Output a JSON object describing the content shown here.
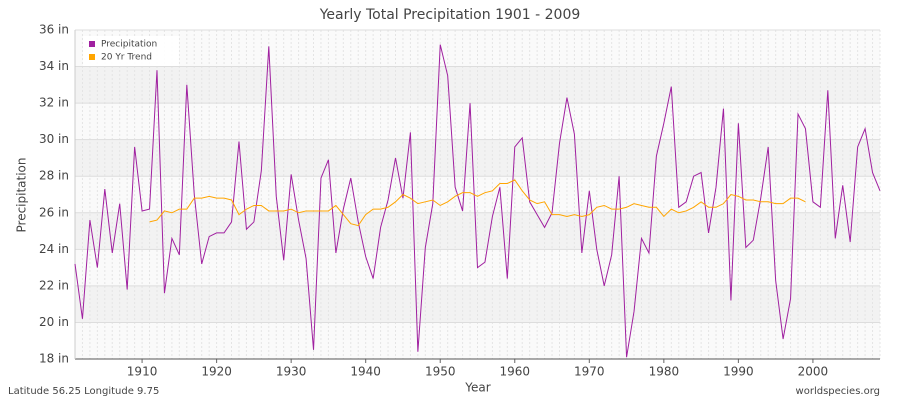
{
  "chart_data": {
    "type": "line",
    "title": "Yearly Total Precipitation 1901 - 2009",
    "x_label": "Year",
    "y_label": "Precipitation",
    "footer_left": "Latitude 56.25 Longitude 9.75",
    "footer_right": "worldspecies.org",
    "x": [
      1901,
      1902,
      1903,
      1904,
      1905,
      1906,
      1907,
      1908,
      1909,
      1910,
      1911,
      1912,
      1913,
      1914,
      1915,
      1916,
      1917,
      1918,
      1919,
      1920,
      1921,
      1922,
      1923,
      1924,
      1925,
      1926,
      1927,
      1928,
      1929,
      1930,
      1931,
      1932,
      1933,
      1934,
      1935,
      1936,
      1937,
      1938,
      1939,
      1940,
      1941,
      1942,
      1943,
      1944,
      1945,
      1946,
      1947,
      1948,
      1949,
      1950,
      1951,
      1952,
      1953,
      1954,
      1955,
      1956,
      1957,
      1958,
      1959,
      1960,
      1961,
      1962,
      1963,
      1964,
      1965,
      1966,
      1967,
      1968,
      1969,
      1970,
      1971,
      1972,
      1973,
      1974,
      1975,
      1976,
      1977,
      1978,
      1979,
      1980,
      1981,
      1982,
      1983,
      1984,
      1985,
      1986,
      1987,
      1988,
      1989,
      1990,
      1991,
      1992,
      1993,
      1994,
      1995,
      1996,
      1997,
      1998,
      1999,
      2000,
      2001,
      2002,
      2003,
      2004,
      2005,
      2006,
      2007,
      2008,
      2009
    ],
    "series": [
      {
        "name": "Precipitation",
        "color": "#a020a0",
        "values": [
          23.2,
          20.2,
          25.6,
          23.0,
          27.3,
          23.8,
          26.5,
          21.8,
          29.6,
          26.1,
          26.2,
          33.8,
          21.6,
          24.6,
          23.7,
          33.0,
          27.0,
          23.2,
          24.7,
          24.9,
          24.9,
          25.5,
          29.9,
          25.1,
          25.5,
          28.3,
          35.1,
          26.9,
          23.4,
          28.1,
          25.6,
          23.5,
          18.5,
          27.9,
          28.9,
          23.8,
          26.2,
          27.9,
          25.5,
          23.6,
          22.4,
          25.2,
          26.7,
          29.0,
          26.8,
          30.4,
          18.4,
          24.1,
          26.5,
          35.2,
          33.5,
          27.4,
          26.1,
          32.0,
          23.0,
          23.3,
          25.8,
          27.4,
          22.4,
          29.6,
          30.1,
          26.6,
          25.9,
          25.2,
          26.0,
          29.8,
          32.3,
          30.3,
          23.8,
          27.2,
          24.0,
          22.0,
          23.7,
          28.0,
          18.1,
          20.6,
          24.6,
          23.8,
          29.1,
          30.9,
          32.9,
          26.3,
          26.6,
          28.0,
          28.2,
          24.9,
          27.4,
          31.7,
          21.2,
          30.9,
          24.1,
          24.5,
          26.8,
          29.6,
          22.3,
          19.1,
          21.3,
          31.4,
          30.6,
          26.6,
          26.3,
          32.7,
          24.6,
          27.5,
          24.4,
          29.6,
          30.6,
          28.2,
          27.2
        ]
      },
      {
        "name": "20 Yr Trend",
        "color": "#ffa500",
        "values": [
          null,
          null,
          null,
          null,
          null,
          null,
          null,
          null,
          null,
          null,
          25.5,
          25.6,
          26.1,
          26.0,
          26.2,
          26.2,
          26.8,
          26.8,
          26.9,
          26.8,
          26.8,
          26.7,
          25.9,
          26.2,
          26.4,
          26.4,
          26.1,
          26.1,
          26.1,
          26.2,
          26.0,
          26.1,
          26.1,
          26.1,
          26.1,
          26.4,
          25.9,
          25.4,
          25.3,
          25.9,
          26.2,
          26.2,
          26.3,
          26.6,
          27.0,
          26.8,
          26.5,
          26.6,
          26.7,
          26.4,
          26.6,
          26.9,
          27.1,
          27.1,
          26.9,
          27.1,
          27.2,
          27.6,
          27.6,
          27.8,
          27.2,
          26.7,
          26.5,
          26.6,
          25.9,
          25.9,
          25.8,
          25.9,
          25.8,
          25.9,
          26.3,
          26.4,
          26.2,
          26.2,
          26.3,
          26.5,
          26.4,
          26.3,
          26.3,
          25.8,
          26.2,
          26.0,
          26.1,
          26.3,
          26.6,
          26.3,
          26.3,
          26.5,
          27.0,
          26.9,
          26.7,
          26.7,
          26.6,
          26.6,
          26.5,
          26.5,
          26.8,
          26.8,
          26.6,
          null,
          null,
          null,
          null,
          null,
          null,
          null,
          null,
          null,
          null
        ]
      }
    ],
    "xlim": [
      1901,
      2009
    ],
    "xticks": [
      1910,
      1920,
      1930,
      1940,
      1950,
      1960,
      1970,
      1980,
      1990,
      2000
    ],
    "ylim": [
      18,
      36
    ],
    "yticks": [
      {
        "value": 18,
        "label": "18 in"
      },
      {
        "value": 20,
        "label": "20 in"
      },
      {
        "value": 22,
        "label": "22 in"
      },
      {
        "value": 24,
        "label": "24 in"
      },
      {
        "value": 26,
        "label": "26 in"
      },
      {
        "value": 28,
        "label": "28 in"
      },
      {
        "value": 30,
        "label": "30 in"
      },
      {
        "value": 32,
        "label": "32 in"
      },
      {
        "value": 34,
        "label": "34 in"
      },
      {
        "value": 36,
        "label": "36 in"
      }
    ],
    "grid": true,
    "legend": "top-left"
  }
}
